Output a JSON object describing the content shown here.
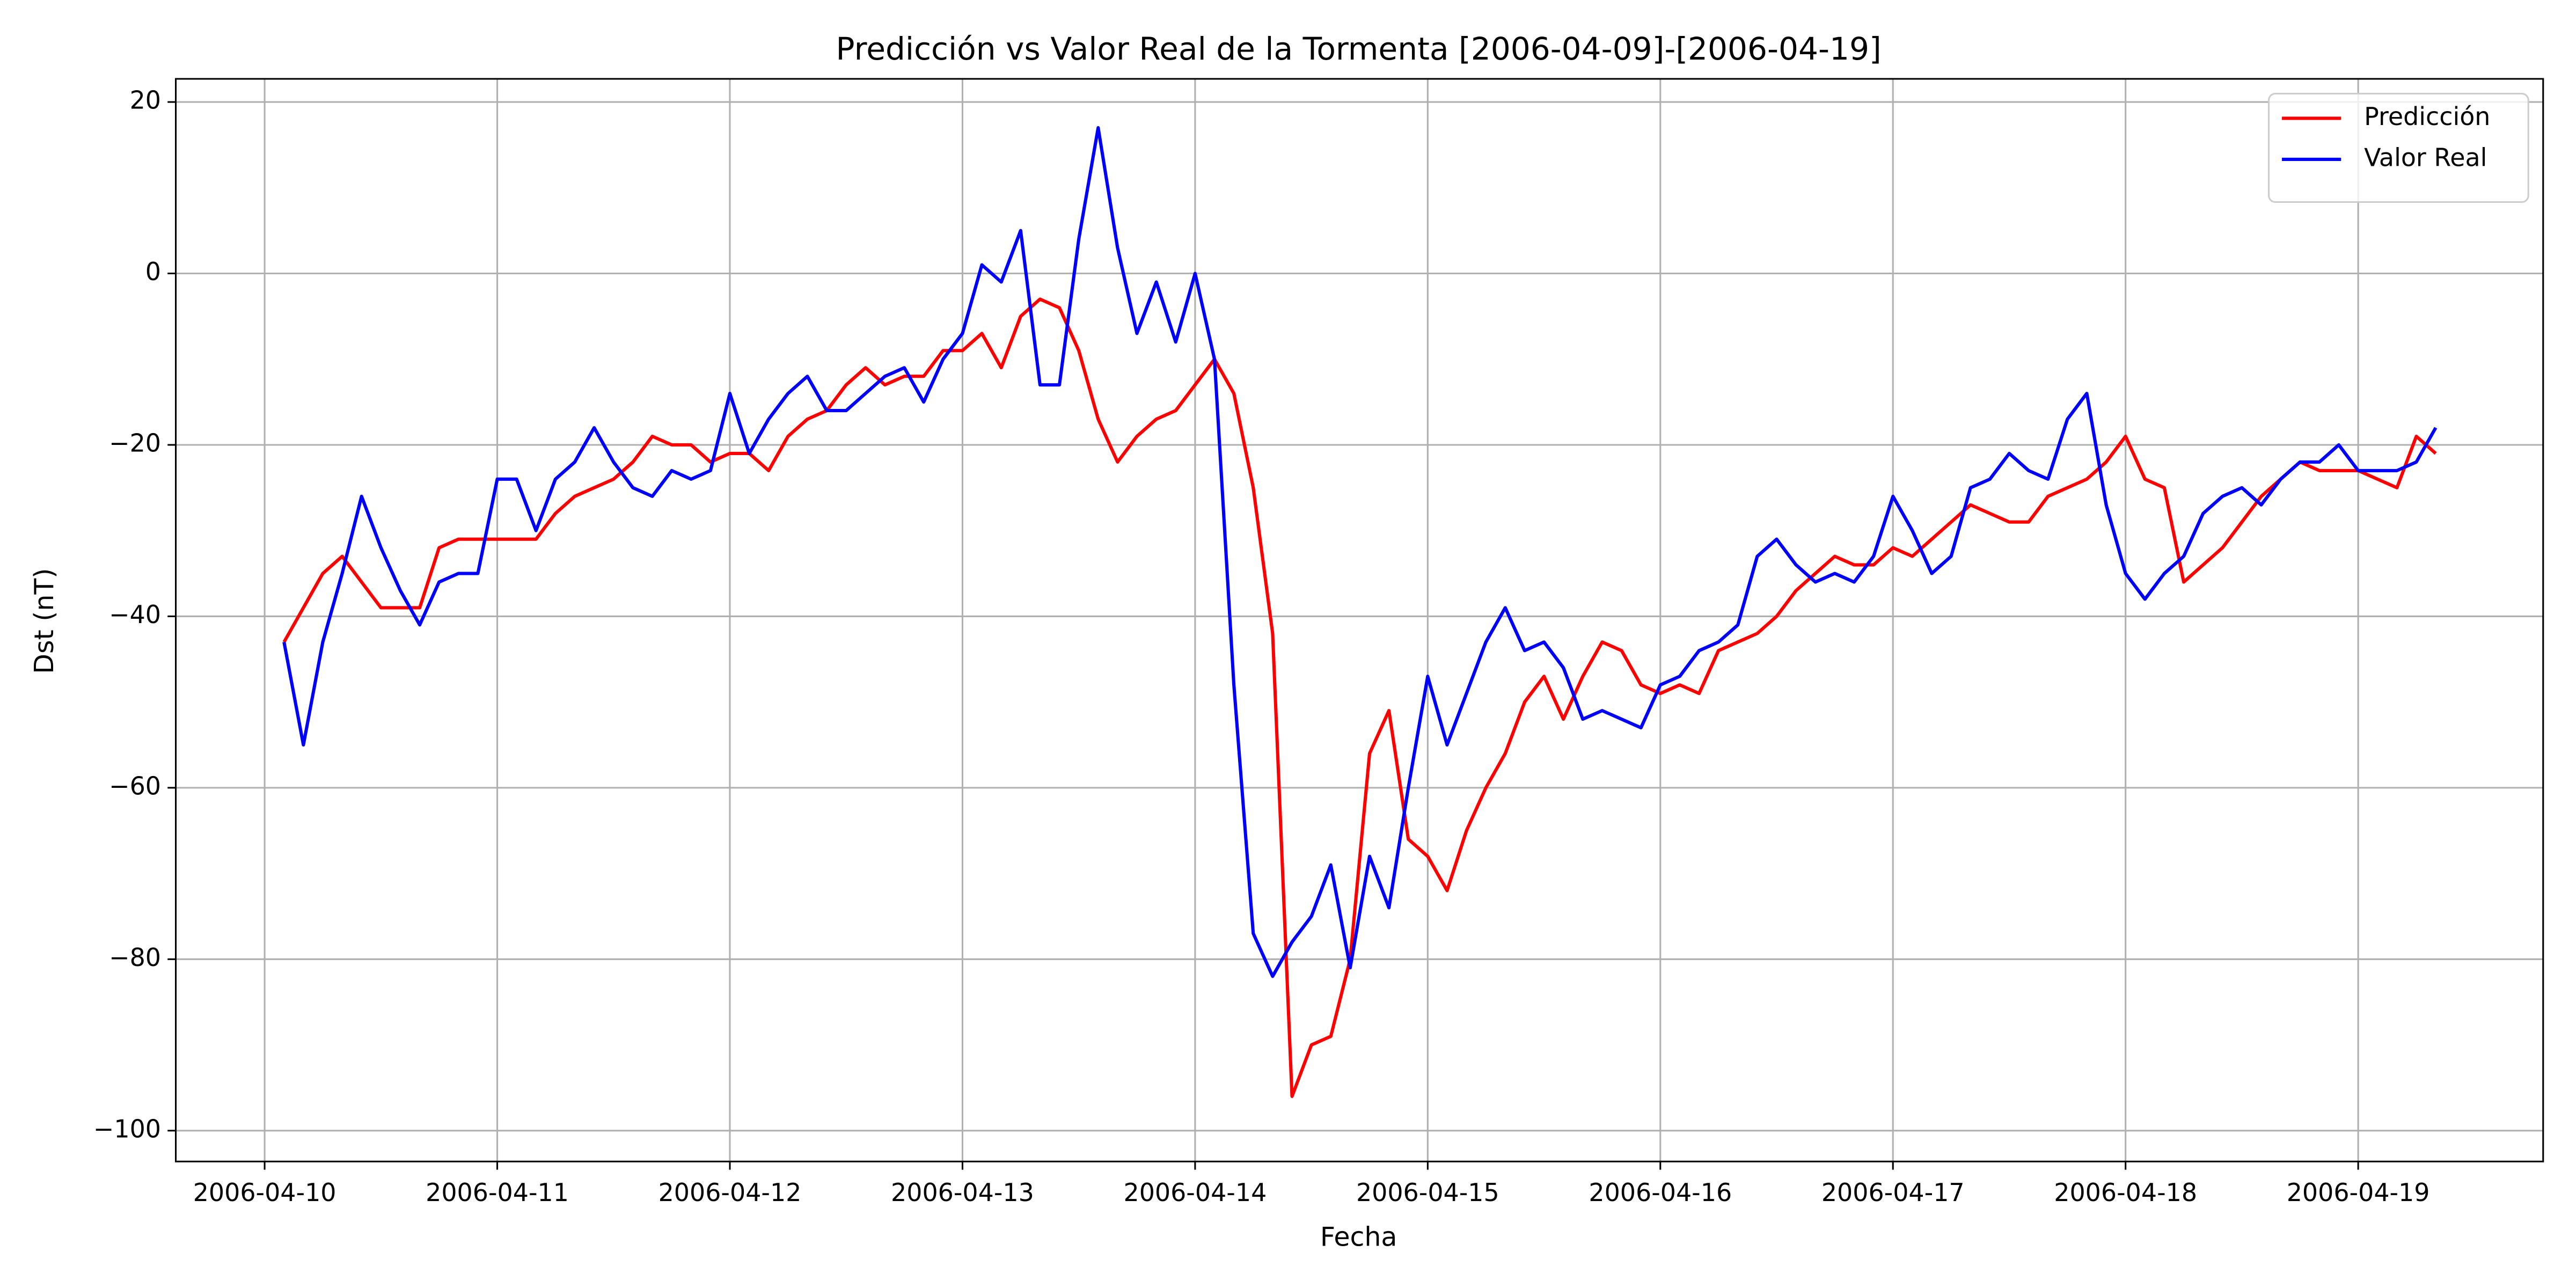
{
  "chart_data": {
    "type": "line",
    "title": "Predicción vs Valor Real de la Tormenta [2006-04-09]-[2006-04-19]",
    "xlabel": "Fecha",
    "ylabel": "Dst (nT)",
    "x": [
      "2006-04-10 02:00",
      "2006-04-10 04:00",
      "2006-04-10 06:00",
      "2006-04-10 08:00",
      "2006-04-10 10:00",
      "2006-04-10 12:00",
      "2006-04-10 14:00",
      "2006-04-10 16:00",
      "2006-04-10 18:00",
      "2006-04-10 20:00",
      "2006-04-10 22:00",
      "2006-04-11 00:00",
      "2006-04-11 02:00",
      "2006-04-11 04:00",
      "2006-04-11 06:00",
      "2006-04-11 08:00",
      "2006-04-11 10:00",
      "2006-04-11 12:00",
      "2006-04-11 14:00",
      "2006-04-11 16:00",
      "2006-04-11 18:00",
      "2006-04-11 20:00",
      "2006-04-11 22:00",
      "2006-04-12 00:00",
      "2006-04-12 02:00",
      "2006-04-12 04:00",
      "2006-04-12 06:00",
      "2006-04-12 08:00",
      "2006-04-12 10:00",
      "2006-04-12 12:00",
      "2006-04-12 14:00",
      "2006-04-12 16:00",
      "2006-04-12 18:00",
      "2006-04-12 20:00",
      "2006-04-12 22:00",
      "2006-04-13 00:00",
      "2006-04-13 02:00",
      "2006-04-13 04:00",
      "2006-04-13 06:00",
      "2006-04-13 08:00",
      "2006-04-13 10:00",
      "2006-04-13 12:00",
      "2006-04-13 14:00",
      "2006-04-13 16:00",
      "2006-04-13 18:00",
      "2006-04-13 20:00",
      "2006-04-13 22:00",
      "2006-04-14 00:00",
      "2006-04-14 02:00",
      "2006-04-14 04:00",
      "2006-04-14 06:00",
      "2006-04-14 08:00",
      "2006-04-14 10:00",
      "2006-04-14 12:00",
      "2006-04-14 14:00",
      "2006-04-14 16:00",
      "2006-04-14 18:00",
      "2006-04-14 20:00",
      "2006-04-14 22:00",
      "2006-04-15 00:00",
      "2006-04-15 02:00",
      "2006-04-15 04:00",
      "2006-04-15 06:00",
      "2006-04-15 08:00",
      "2006-04-15 10:00",
      "2006-04-15 12:00",
      "2006-04-15 14:00",
      "2006-04-15 16:00",
      "2006-04-15 18:00",
      "2006-04-15 20:00",
      "2006-04-15 22:00",
      "2006-04-16 00:00",
      "2006-04-16 02:00",
      "2006-04-16 04:00",
      "2006-04-16 06:00",
      "2006-04-16 08:00",
      "2006-04-16 10:00",
      "2006-04-16 12:00",
      "2006-04-16 14:00",
      "2006-04-16 16:00",
      "2006-04-16 18:00",
      "2006-04-16 20:00",
      "2006-04-16 22:00",
      "2006-04-17 00:00",
      "2006-04-17 02:00",
      "2006-04-17 04:00",
      "2006-04-17 06:00",
      "2006-04-17 08:00",
      "2006-04-17 10:00",
      "2006-04-17 12:00",
      "2006-04-17 14:00",
      "2006-04-17 16:00",
      "2006-04-17 18:00",
      "2006-04-17 20:00",
      "2006-04-17 22:00",
      "2006-04-18 00:00",
      "2006-04-18 02:00",
      "2006-04-18 04:00",
      "2006-04-18 06:00",
      "2006-04-18 08:00",
      "2006-04-18 10:00",
      "2006-04-18 12:00",
      "2006-04-18 14:00",
      "2006-04-18 16:00",
      "2006-04-18 18:00",
      "2006-04-18 20:00",
      "2006-04-18 22:00",
      "2006-04-19 00:00",
      "2006-04-19 02:00",
      "2006-04-19 04:00",
      "2006-04-19 06:00",
      "2006-04-19 08:00"
    ],
    "series": [
      {
        "name": "Predicción",
        "color": "#ff0000",
        "values": [
          -43,
          -39,
          -35,
          -33,
          -36,
          -39,
          -39,
          -39,
          -32,
          -31,
          -31,
          -31,
          -31,
          -31,
          -28,
          -26,
          -25,
          -24,
          -22,
          -19,
          -20,
          -20,
          -22,
          -21,
          -21,
          -23,
          -19,
          -17,
          -16,
          -13,
          -11,
          -13,
          -12,
          -12,
          -9,
          -9,
          -7,
          -11,
          -5,
          -3,
          -4,
          -9,
          -17,
          -22,
          -19,
          -17,
          -16,
          -13,
          -10,
          -14,
          -25,
          -42,
          -96,
          -90,
          -89,
          -80,
          -56,
          -51,
          -66,
          -68,
          -72,
          -65,
          -60,
          -56,
          -50,
          -47,
          -52,
          -47,
          -43,
          -44,
          -48,
          -49,
          -48,
          -49,
          -44,
          -43,
          -42,
          -40,
          -37,
          -35,
          -33,
          -34,
          -34,
          -32,
          -33,
          -31,
          -29,
          -27,
          -28,
          -29,
          -29,
          -26,
          -25,
          -24,
          -22,
          -19,
          -24,
          -25,
          -36,
          -34,
          -32,
          -29,
          -26,
          -24,
          -22,
          -23,
          -23,
          -23,
          -24,
          -25,
          -19,
          -21
        ]
      },
      {
        "name": "Valor Real",
        "color": "#0000ff",
        "values": [
          -43,
          -55,
          -43,
          -35,
          -26,
          -32,
          -37,
          -41,
          -36,
          -35,
          -35,
          -24,
          -24,
          -30,
          -24,
          -22,
          -18,
          -22,
          -25,
          -26,
          -23,
          -24,
          -23,
          -14,
          -21,
          -17,
          -14,
          -12,
          -16,
          -16,
          -14,
          -12,
          -11,
          -15,
          -10,
          -7,
          1,
          -1,
          5,
          -13,
          -13,
          4,
          17,
          3,
          -7,
          -1,
          -8,
          0,
          -10,
          -48,
          -77,
          -82,
          -78,
          -75,
          -69,
          -81,
          -68,
          -74,
          -60,
          -47,
          -55,
          -49,
          -43,
          -39,
          -44,
          -43,
          -46,
          -52,
          -51,
          -52,
          -53,
          -48,
          -47,
          -44,
          -43,
          -41,
          -33,
          -31,
          -34,
          -36,
          -35,
          -36,
          -33,
          -26,
          -30,
          -35,
          -33,
          -25,
          -24,
          -21,
          -23,
          -24,
          -17,
          -14,
          -27,
          -35,
          -38,
          -35,
          -33,
          -28,
          -26,
          -25,
          -27,
          -24,
          -22,
          -22,
          -20,
          -23,
          -23,
          -23,
          -22,
          -18
        ]
      }
    ],
    "xlim": [
      "2006-04-09 14:50",
      "2006-04-19 19:05"
    ],
    "xticks": [
      "2006-04-10",
      "2006-04-11",
      "2006-04-12",
      "2006-04-13",
      "2006-04-14",
      "2006-04-15",
      "2006-04-16",
      "2006-04-17",
      "2006-04-18",
      "2006-04-19"
    ],
    "ylim": [
      -103.6,
      22.7
    ],
    "yticks": [
      {
        "value": -100,
        "label": "−100"
      },
      {
        "value": -80,
        "label": "−80"
      },
      {
        "value": -60,
        "label": "−60"
      },
      {
        "value": -40,
        "label": "−40"
      },
      {
        "value": -20,
        "label": "−20"
      },
      0,
      20
    ],
    "grid": true,
    "legend": "upper right"
  }
}
